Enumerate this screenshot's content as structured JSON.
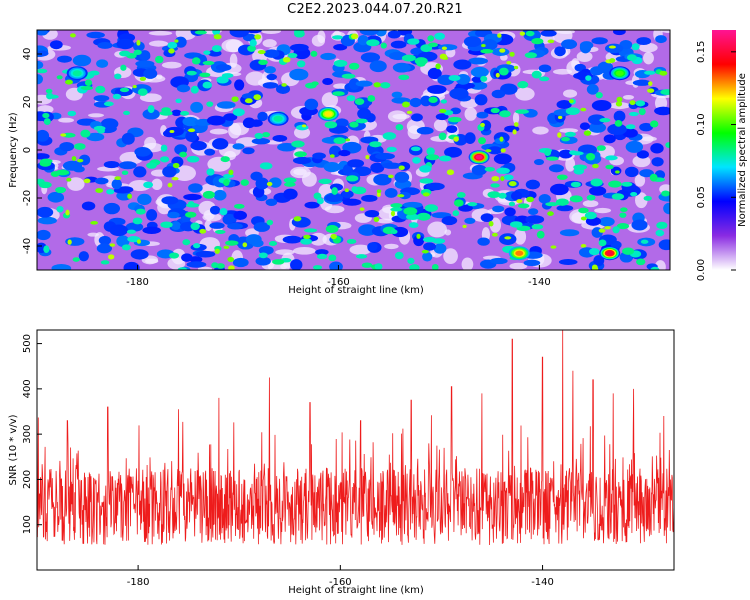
{
  "figure": {
    "title": "C2E2.2023.044.07.20.R21"
  },
  "chart_data": [
    {
      "type": "heatmap",
      "xlabel": "Height of straight line (km)",
      "ylabel": "Frequency (Hz)",
      "xlim": [
        -190,
        -127
      ],
      "ylim": [
        -50,
        50
      ],
      "x_ticks": [
        -180,
        -160,
        -140
      ],
      "y_ticks": [
        -40,
        -20,
        0,
        20,
        40
      ],
      "colorbar": {
        "label": "Normalized spectral amplitude",
        "range": [
          0.0,
          0.165
        ],
        "ticks": [
          "0.00",
          "0.05",
          "0.10",
          "0.15"
        ],
        "tick_values": [
          0.0,
          0.05,
          0.1,
          0.15
        ],
        "colormap": [
          "#ffffff",
          "#8a2be2",
          "#0000ff",
          "#00e5ff",
          "#00ff00",
          "#ffff00",
          "#ff0000",
          "#ff1493"
        ]
      },
      "hotspots": [
        {
          "x": -146,
          "y": -3,
          "value": 0.16
        },
        {
          "x": -133,
          "y": -43,
          "value": 0.15
        },
        {
          "x": -142,
          "y": -43,
          "value": 0.13
        },
        {
          "x": -161,
          "y": 15,
          "value": 0.12
        },
        {
          "x": -132,
          "y": 32,
          "value": 0.1
        },
        {
          "x": -186,
          "y": 32,
          "value": 0.08
        },
        {
          "x": -166,
          "y": 13,
          "value": 0.08
        }
      ]
    },
    {
      "type": "line",
      "xlabel": "Height of straight line (km)",
      "ylabel": "SNR (10 * v/v)",
      "xlim": [
        -190,
        -127
      ],
      "ylim": [
        0,
        530
      ],
      "x_ticks": [
        -180,
        -160,
        -140
      ],
      "y_ticks": [
        100,
        200,
        300,
        400,
        500
      ],
      "series": [
        {
          "color": "#ee1c1c",
          "baseline": 140,
          "spikes": [
            {
              "x": -187,
              "y": 330
            },
            {
              "x": -183,
              "y": 360
            },
            {
              "x": -176,
              "y": 355
            },
            {
              "x": -172,
              "y": 380
            },
            {
              "x": -167,
              "y": 425
            },
            {
              "x": -163,
              "y": 370
            },
            {
              "x": -158,
              "y": 330
            },
            {
              "x": -153,
              "y": 375
            },
            {
              "x": -149,
              "y": 405
            },
            {
              "x": -146,
              "y": 390
            },
            {
              "x": -143,
              "y": 510
            },
            {
              "x": -140,
              "y": 470
            },
            {
              "x": -138,
              "y": 530
            },
            {
              "x": -137,
              "y": 440
            },
            {
              "x": -135,
              "y": 420
            },
            {
              "x": -133,
              "y": 390
            },
            {
              "x": -131,
              "y": 400
            },
            {
              "x": -128,
              "y": 340
            }
          ]
        }
      ]
    }
  ]
}
